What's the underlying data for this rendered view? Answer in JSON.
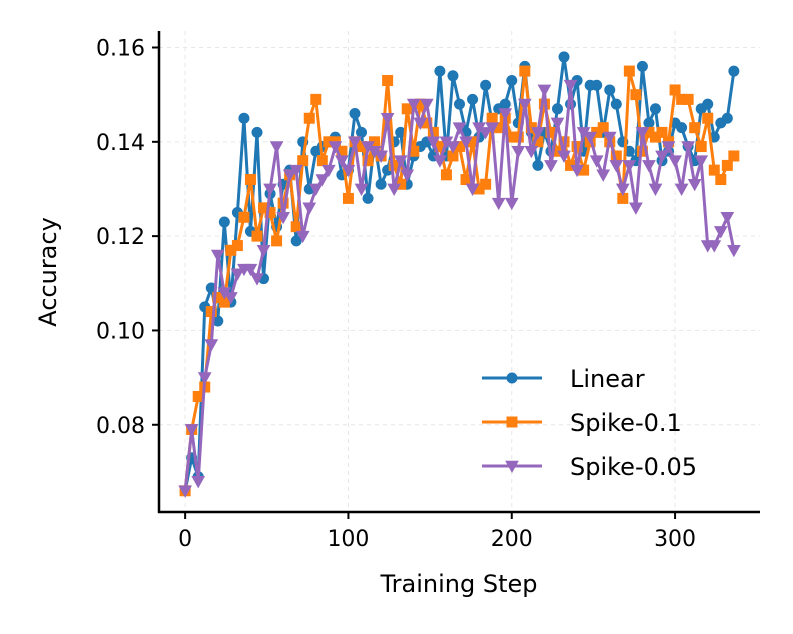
{
  "chart_data": {
    "type": "line",
    "title": "",
    "xlabel": "Training Step",
    "ylabel": "Accuracy",
    "xlim": [
      -16,
      352
    ],
    "ylim": [
      0.0615,
      0.1635
    ],
    "xticks": [
      0,
      100,
      200,
      300
    ],
    "xtick_labels": [
      "0",
      "100",
      "200",
      "300"
    ],
    "yticks": [
      0.08,
      0.1,
      0.12,
      0.14,
      0.16
    ],
    "ytick_labels": [
      "0.08",
      "0.10",
      "0.12",
      "0.14",
      "0.16"
    ],
    "grid": true,
    "legend_position": "lower-right",
    "series": [
      {
        "name": "Linear",
        "color": "#1f77b4",
        "marker": "circle",
        "x": [
          0,
          4,
          8,
          12,
          16,
          20,
          24,
          28,
          32,
          36,
          40,
          44,
          48,
          52,
          56,
          60,
          64,
          68,
          72,
          76,
          80,
          84,
          88,
          92,
          96,
          100,
          104,
          108,
          112,
          116,
          120,
          124,
          128,
          132,
          136,
          140,
          144,
          148,
          152,
          156,
          160,
          164,
          168,
          172,
          176,
          180,
          184,
          188,
          192,
          196,
          200,
          204,
          208,
          212,
          216,
          220,
          224,
          228,
          232,
          236,
          240,
          244,
          248,
          252,
          256,
          260,
          264,
          268,
          272,
          276,
          280,
          284,
          288,
          292,
          296,
          300,
          304,
          308,
          312,
          316,
          320,
          324,
          328,
          332,
          336
        ],
        "y": [
          0.066,
          0.073,
          0.069,
          0.105,
          0.109,
          0.102,
          0.123,
          0.106,
          0.125,
          0.145,
          0.121,
          0.142,
          0.111,
          0.129,
          0.122,
          0.131,
          0.134,
          0.119,
          0.14,
          0.13,
          0.138,
          0.139,
          0.14,
          0.141,
          0.133,
          0.134,
          0.146,
          0.142,
          0.128,
          0.14,
          0.131,
          0.134,
          0.14,
          0.142,
          0.131,
          0.137,
          0.139,
          0.14,
          0.137,
          0.155,
          0.137,
          0.154,
          0.148,
          0.142,
          0.149,
          0.141,
          0.152,
          0.144,
          0.147,
          0.148,
          0.153,
          0.144,
          0.156,
          0.142,
          0.135,
          0.142,
          0.138,
          0.147,
          0.158,
          0.148,
          0.153,
          0.138,
          0.152,
          0.152,
          0.142,
          0.151,
          0.148,
          0.14,
          0.138,
          0.136,
          0.156,
          0.144,
          0.147,
          0.136,
          0.138,
          0.144,
          0.143,
          0.139,
          0.136,
          0.147,
          0.148,
          0.141,
          0.144,
          0.145,
          0.155
        ]
      },
      {
        "name": "Spike-0.1",
        "color": "#ff7f0e",
        "marker": "square",
        "x": [
          0,
          4,
          8,
          12,
          16,
          20,
          24,
          28,
          32,
          36,
          40,
          44,
          48,
          52,
          56,
          60,
          64,
          68,
          72,
          76,
          80,
          84,
          88,
          92,
          96,
          100,
          104,
          108,
          112,
          116,
          120,
          124,
          128,
          132,
          136,
          140,
          144,
          148,
          152,
          156,
          160,
          164,
          168,
          172,
          176,
          180,
          184,
          188,
          192,
          196,
          200,
          204,
          208,
          212,
          216,
          220,
          224,
          228,
          232,
          236,
          240,
          244,
          248,
          252,
          256,
          260,
          264,
          268,
          272,
          276,
          280,
          284,
          288,
          292,
          296,
          300,
          304,
          308,
          312,
          316,
          320,
          324,
          328,
          332,
          336
        ],
        "y": [
          0.066,
          0.079,
          0.086,
          0.088,
          0.104,
          0.107,
          0.106,
          0.117,
          0.118,
          0.124,
          0.132,
          0.12,
          0.126,
          0.125,
          0.119,
          0.127,
          0.133,
          0.122,
          0.136,
          0.145,
          0.149,
          0.136,
          0.14,
          0.14,
          0.138,
          0.128,
          0.14,
          0.139,
          0.136,
          0.14,
          0.137,
          0.153,
          0.135,
          0.131,
          0.147,
          0.138,
          0.148,
          0.144,
          0.142,
          0.139,
          0.133,
          0.137,
          0.139,
          0.132,
          0.14,
          0.13,
          0.131,
          0.145,
          0.143,
          0.145,
          0.141,
          0.141,
          0.155,
          0.143,
          0.14,
          0.148,
          0.142,
          0.138,
          0.14,
          0.135,
          0.139,
          0.134,
          0.14,
          0.142,
          0.143,
          0.14,
          0.137,
          0.128,
          0.155,
          0.15,
          0.138,
          0.142,
          0.141,
          0.142,
          0.14,
          0.151,
          0.149,
          0.149,
          0.143,
          0.139,
          0.145,
          0.134,
          0.132,
          0.135,
          0.137
        ]
      },
      {
        "name": "Spike-0.05",
        "color": "#9467bd",
        "marker": "triangle-down",
        "x": [
          0,
          4,
          8,
          12,
          16,
          20,
          24,
          28,
          32,
          36,
          40,
          44,
          48,
          52,
          56,
          60,
          64,
          68,
          72,
          76,
          80,
          84,
          88,
          92,
          96,
          100,
          104,
          108,
          112,
          116,
          120,
          124,
          128,
          132,
          136,
          140,
          144,
          148,
          152,
          156,
          160,
          164,
          168,
          172,
          176,
          180,
          184,
          188,
          192,
          196,
          200,
          204,
          208,
          212,
          216,
          220,
          224,
          228,
          232,
          236,
          240,
          244,
          248,
          252,
          256,
          260,
          264,
          268,
          272,
          276,
          280,
          284,
          288,
          292,
          296,
          300,
          304,
          308,
          312,
          316,
          320,
          324,
          328,
          332,
          336
        ],
        "y": [
          0.066,
          0.079,
          0.068,
          0.09,
          0.097,
          0.116,
          0.108,
          0.107,
          0.112,
          0.113,
          0.113,
          0.111,
          0.117,
          0.13,
          0.139,
          0.124,
          0.133,
          0.134,
          0.12,
          0.126,
          0.13,
          0.132,
          0.134,
          0.139,
          0.136,
          0.134,
          0.14,
          0.13,
          0.139,
          0.138,
          0.137,
          0.145,
          0.13,
          0.136,
          0.133,
          0.148,
          0.144,
          0.148,
          0.14,
          0.136,
          0.14,
          0.139,
          0.143,
          0.14,
          0.13,
          0.143,
          0.142,
          0.143,
          0.127,
          0.146,
          0.127,
          0.138,
          0.148,
          0.138,
          0.142,
          0.151,
          0.135,
          0.144,
          0.137,
          0.152,
          0.134,
          0.142,
          0.141,
          0.136,
          0.133,
          0.141,
          0.135,
          0.13,
          0.135,
          0.126,
          0.142,
          0.135,
          0.13,
          0.137,
          0.139,
          0.136,
          0.13,
          0.139,
          0.131,
          0.136,
          0.118,
          0.118,
          0.121,
          0.124,
          0.117
        ]
      }
    ]
  }
}
